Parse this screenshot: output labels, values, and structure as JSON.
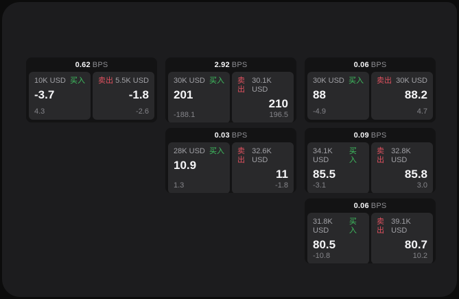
{
  "theme": {
    "page_bg": "#0c0c0c",
    "panel_bg": "#1c1c1e",
    "card_bg": "#131314",
    "tile_bg": "#29292b",
    "buy_color": "#3fc060",
    "sell_color": "#e0515f",
    "text_primary": "#f5f5f7",
    "text_secondary": "#a1a1a6",
    "text_muted": "#85858a",
    "header_unit": "#8e8e93"
  },
  "labels": {
    "bps_unit": "BPS",
    "buy": "买入",
    "sell": "卖出"
  },
  "cards": [
    {
      "row": 1,
      "col": 1,
      "bps": "0.62",
      "buy": {
        "notional": "10K USD",
        "price": "-3.7",
        "delta": "4.3"
      },
      "sell": {
        "notional": "5.5K USD",
        "price": "-1.8",
        "delta": "-2.6"
      }
    },
    {
      "row": 1,
      "col": 2,
      "bps": "2.92",
      "buy": {
        "notional": "30K USD",
        "price": "201",
        "delta": "-188.1"
      },
      "sell": {
        "notional": "30.1K USD",
        "price": "210",
        "delta": "196.5"
      }
    },
    {
      "row": 1,
      "col": 3,
      "bps": "0.06",
      "buy": {
        "notional": "30K USD",
        "price": "88",
        "delta": "-4.9"
      },
      "sell": {
        "notional": "30K USD",
        "price": "88.2",
        "delta": "4.7"
      }
    },
    {
      "row": 2,
      "col": 2,
      "bps": "0.03",
      "buy": {
        "notional": "28K USD",
        "price": "10.9",
        "delta": "1.3"
      },
      "sell": {
        "notional": "32.6K USD",
        "price": "11",
        "delta": "-1.8"
      }
    },
    {
      "row": 2,
      "col": 3,
      "bps": "0.09",
      "buy": {
        "notional": "34.1K USD",
        "price": "85.5",
        "delta": "-3.1"
      },
      "sell": {
        "notional": "32.8K USD",
        "price": "85.8",
        "delta": "3.0"
      }
    },
    {
      "row": 3,
      "col": 3,
      "bps": "0.06",
      "buy": {
        "notional": "31.8K USD",
        "price": "80.5",
        "delta": "-10.8"
      },
      "sell": {
        "notional": "39.1K USD",
        "price": "80.7",
        "delta": "10.2"
      }
    }
  ]
}
